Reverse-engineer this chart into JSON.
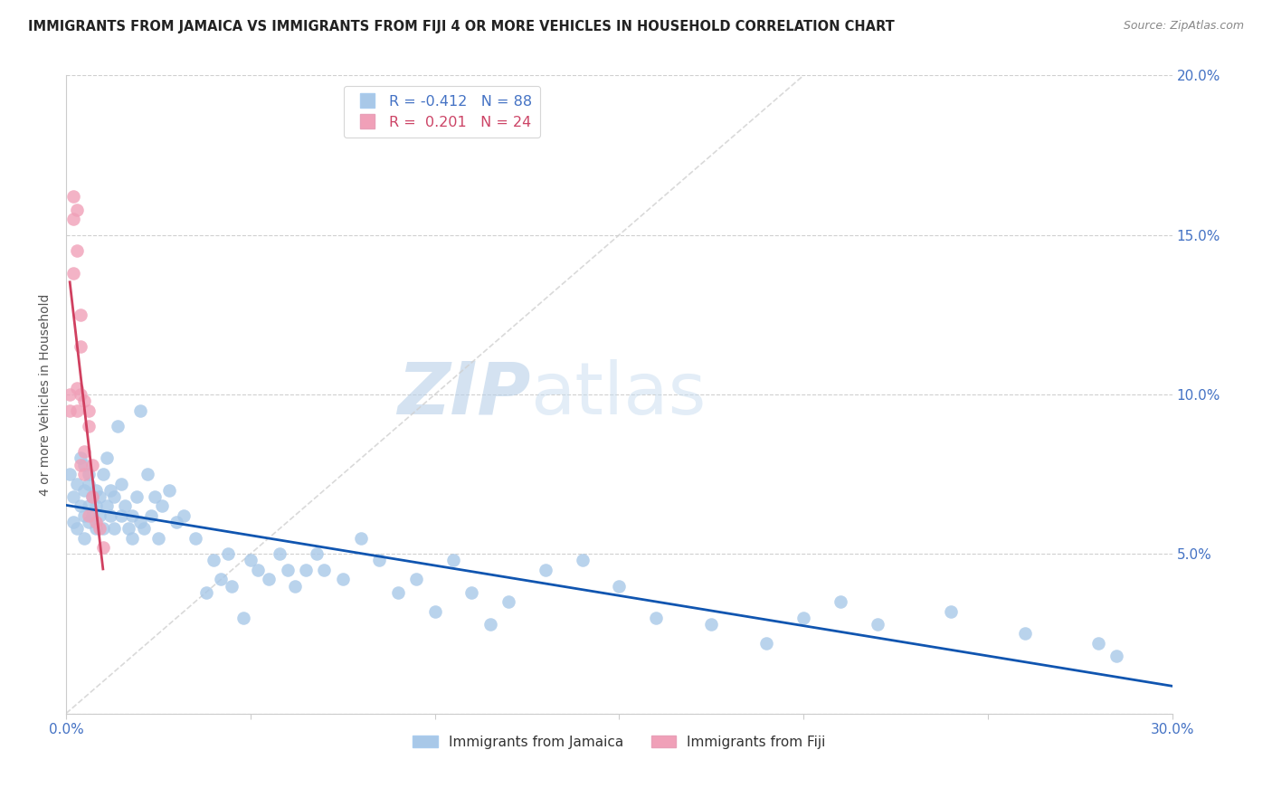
{
  "title": "IMMIGRANTS FROM JAMAICA VS IMMIGRANTS FROM FIJI 4 OR MORE VEHICLES IN HOUSEHOLD CORRELATION CHART",
  "source": "Source: ZipAtlas.com",
  "ylabel": "4 or more Vehicles in Household",
  "xlim": [
    0.0,
    0.3
  ],
  "ylim": [
    0.0,
    0.2
  ],
  "xticks": [
    0.0,
    0.05,
    0.1,
    0.15,
    0.2,
    0.25,
    0.3
  ],
  "yticks": [
    0.0,
    0.05,
    0.1,
    0.15,
    0.2
  ],
  "xtick_labels": [
    "0.0%",
    "",
    "",
    "",
    "",
    "",
    "30.0%"
  ],
  "ytick_labels_right": [
    "",
    "5.0%",
    "10.0%",
    "15.0%",
    "20.0%"
  ],
  "jamaica_color": "#a8c8e8",
  "fiji_color": "#f0a0b8",
  "jamaica_line_color": "#1055b0",
  "fiji_line_color": "#d04060",
  "diagonal_color": "#d0d0d0",
  "r_jamaica": -0.412,
  "n_jamaica": 88,
  "r_fiji": 0.201,
  "n_fiji": 24,
  "watermark_zip": "ZIP",
  "watermark_atlas": "atlas",
  "legend_jamaica": "Immigrants from Jamaica",
  "legend_fiji": "Immigrants from Fiji",
  "jamaica_x": [
    0.001,
    0.002,
    0.002,
    0.003,
    0.003,
    0.004,
    0.004,
    0.005,
    0.005,
    0.005,
    0.006,
    0.006,
    0.006,
    0.007,
    0.007,
    0.008,
    0.008,
    0.008,
    0.009,
    0.009,
    0.01,
    0.01,
    0.011,
    0.011,
    0.012,
    0.012,
    0.013,
    0.013,
    0.014,
    0.015,
    0.015,
    0.016,
    0.017,
    0.018,
    0.018,
    0.019,
    0.02,
    0.02,
    0.021,
    0.022,
    0.023,
    0.024,
    0.025,
    0.026,
    0.028,
    0.03,
    0.032,
    0.035,
    0.038,
    0.04,
    0.042,
    0.044,
    0.045,
    0.048,
    0.05,
    0.052,
    0.055,
    0.058,
    0.06,
    0.062,
    0.065,
    0.068,
    0.07,
    0.075,
    0.08,
    0.085,
    0.09,
    0.095,
    0.1,
    0.105,
    0.11,
    0.115,
    0.12,
    0.13,
    0.14,
    0.15,
    0.16,
    0.175,
    0.19,
    0.2,
    0.21,
    0.22,
    0.24,
    0.26,
    0.28,
    0.285,
    0.005,
    0.006
  ],
  "jamaica_y": [
    0.075,
    0.068,
    0.06,
    0.072,
    0.058,
    0.065,
    0.08,
    0.07,
    0.055,
    0.078,
    0.065,
    0.072,
    0.06,
    0.068,
    0.062,
    0.07,
    0.058,
    0.065,
    0.062,
    0.068,
    0.075,
    0.058,
    0.08,
    0.065,
    0.062,
    0.07,
    0.058,
    0.068,
    0.09,
    0.062,
    0.072,
    0.065,
    0.058,
    0.055,
    0.062,
    0.068,
    0.06,
    0.095,
    0.058,
    0.075,
    0.062,
    0.068,
    0.055,
    0.065,
    0.07,
    0.06,
    0.062,
    0.055,
    0.038,
    0.048,
    0.042,
    0.05,
    0.04,
    0.03,
    0.048,
    0.045,
    0.042,
    0.05,
    0.045,
    0.04,
    0.045,
    0.05,
    0.045,
    0.042,
    0.055,
    0.048,
    0.038,
    0.042,
    0.032,
    0.048,
    0.038,
    0.028,
    0.035,
    0.045,
    0.048,
    0.04,
    0.03,
    0.028,
    0.022,
    0.03,
    0.035,
    0.028,
    0.032,
    0.025,
    0.022,
    0.018,
    0.062,
    0.075
  ],
  "fiji_x": [
    0.001,
    0.001,
    0.002,
    0.002,
    0.002,
    0.003,
    0.003,
    0.003,
    0.003,
    0.004,
    0.004,
    0.004,
    0.004,
    0.005,
    0.005,
    0.005,
    0.006,
    0.006,
    0.006,
    0.007,
    0.007,
    0.008,
    0.009,
    0.01
  ],
  "fiji_y": [
    0.1,
    0.095,
    0.155,
    0.162,
    0.138,
    0.145,
    0.158,
    0.095,
    0.102,
    0.115,
    0.1,
    0.125,
    0.078,
    0.098,
    0.082,
    0.075,
    0.09,
    0.095,
    0.062,
    0.068,
    0.078,
    0.06,
    0.058,
    0.052
  ]
}
